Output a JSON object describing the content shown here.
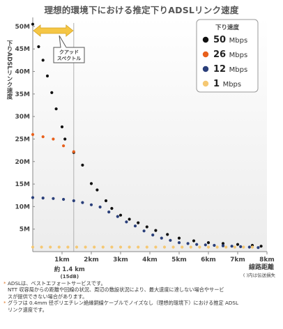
{
  "chart_data": {
    "type": "scatter",
    "title": "理想的環境下における推定下りADSLリンク速度",
    "ylabel": "下りADSLリンク速度",
    "xlabel": "線路距離",
    "xlabel_note": "( )内は伝送損失",
    "xlim": [
      0,
      8
    ],
    "ylim": [
      0,
      52
    ],
    "y_ticks": [
      "5M",
      "10M",
      "15M",
      "20M",
      "25M",
      "30M",
      "35M",
      "40M",
      "45M",
      "50M"
    ],
    "x_ticks": [
      "1km",
      "2km",
      "3km",
      "4km",
      "5km",
      "6km",
      "7km",
      "8km"
    ],
    "legend_title": "下り速度",
    "legend_position": "top-right",
    "annotation": {
      "line1": "クアッド",
      "line2": "スペクトル",
      "marker_main": "約 1.4 km",
      "marker_sub": "(15dB)",
      "marker_x": 1.4
    },
    "series": [
      {
        "name": "50 Mbps",
        "color": "#111111",
        "points": [
          [
            0,
            50.5
          ],
          [
            0.2,
            45.5
          ],
          [
            0.35,
            42.5
          ],
          [
            0.5,
            39
          ],
          [
            0.65,
            35.3
          ],
          [
            0.8,
            31.7
          ],
          [
            1.0,
            27.7
          ],
          [
            1.1,
            25
          ],
          [
            1.4,
            22
          ],
          [
            1.7,
            19.2
          ],
          [
            2.0,
            15.1
          ],
          [
            2.2,
            13.7
          ],
          [
            2.5,
            11.3
          ],
          [
            2.7,
            9.6
          ],
          [
            3.0,
            8.1
          ],
          [
            3.3,
            7.2
          ],
          [
            3.6,
            6.4
          ],
          [
            3.9,
            5.5
          ],
          [
            4.2,
            4.7
          ],
          [
            4.6,
            3.8
          ],
          [
            5.0,
            3.0
          ],
          [
            5.5,
            2.4
          ],
          [
            6.0,
            2.0
          ],
          [
            6.5,
            1.8
          ],
          [
            7.0,
            1.6
          ],
          [
            7.5,
            1.4
          ],
          [
            7.8,
            1.2
          ]
        ]
      },
      {
        "name": "26 Mbps",
        "color": "#e8601c",
        "points": [
          [
            0,
            26
          ],
          [
            0.35,
            25.5
          ],
          [
            0.7,
            25
          ],
          [
            1.05,
            23.5
          ],
          [
            1.4,
            22.2
          ]
        ]
      },
      {
        "name": "12 Mbps",
        "color": "#2a3f7a",
        "points": [
          [
            0,
            12
          ],
          [
            0.35,
            11.9
          ],
          [
            0.7,
            11.8
          ],
          [
            1.05,
            11.6
          ],
          [
            1.4,
            11.3
          ],
          [
            1.7,
            10.9
          ],
          [
            2.0,
            10.4
          ],
          [
            2.3,
            9.9
          ],
          [
            2.6,
            8.8
          ],
          [
            2.9,
            7.8
          ],
          [
            3.2,
            6.6
          ],
          [
            3.5,
            5.7
          ],
          [
            3.8,
            4.6
          ],
          [
            4.1,
            3.7
          ],
          [
            4.4,
            3.0
          ],
          [
            4.7,
            2.5
          ],
          [
            5.0,
            2.0
          ],
          [
            5.3,
            1.8
          ],
          [
            5.6,
            1.6
          ],
          [
            5.9,
            1.5
          ],
          [
            6.2,
            1.4
          ],
          [
            6.5,
            1.3
          ],
          [
            6.8,
            1.2
          ],
          [
            7.1,
            1.1
          ],
          [
            7.4,
            1.0
          ],
          [
            7.7,
            0.9
          ]
        ]
      },
      {
        "name": "1 Mbps",
        "color": "#f5c873",
        "points": [
          [
            0,
            1
          ],
          [
            0.3,
            1
          ],
          [
            0.6,
            1
          ],
          [
            0.9,
            1
          ],
          [
            1.2,
            1
          ],
          [
            1.5,
            1
          ],
          [
            1.8,
            1
          ],
          [
            2.1,
            1
          ],
          [
            2.4,
            1
          ],
          [
            2.7,
            1
          ],
          [
            3.0,
            1
          ],
          [
            3.3,
            1
          ],
          [
            3.6,
            1
          ],
          [
            3.9,
            1
          ],
          [
            4.2,
            1
          ],
          [
            4.5,
            1
          ],
          [
            4.8,
            1
          ],
          [
            5.1,
            1
          ],
          [
            5.4,
            1
          ],
          [
            5.7,
            1
          ],
          [
            6.0,
            1
          ],
          [
            6.3,
            1
          ],
          [
            6.6,
            1
          ],
          [
            6.9,
            1
          ],
          [
            7.2,
            1
          ],
          [
            7.5,
            1
          ]
        ]
      }
    ]
  },
  "footnotes": [
    {
      "mark": "*",
      "lines": [
        "ADSLは、ベストエフォートサービスです。",
        "NTT 収容局からの距離や回線の状況、周辺の敷設状況により、最大速度に達しない場合やサービ",
        "スが提供できない場合があります。"
      ]
    },
    {
      "mark": "*",
      "lines": [
        "グラフは 0.4mm 径ポリエチレン絶縁銅線ケーブルでノイズなし（理想的環境下）における推定 ADSL",
        "リンク速度です。"
      ]
    }
  ]
}
